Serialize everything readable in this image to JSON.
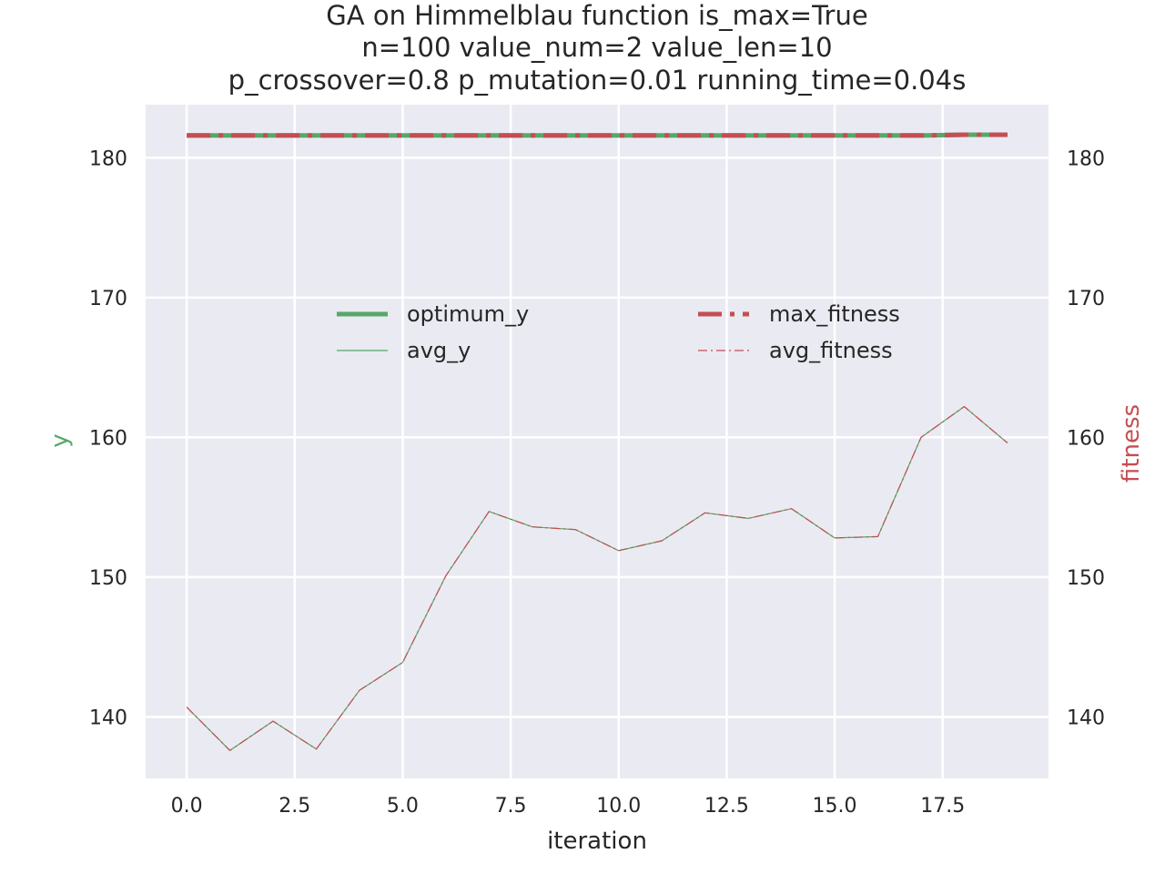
{
  "chart_data": {
    "type": "line",
    "title_lines": [
      "GA on Himmelblau function  is_max=True",
      "n=100  value_num=2  value_len=10",
      "p_crossover=0.8  p_mutation=0.01 running_time=0.04s"
    ],
    "xlabel": "iteration",
    "ylabel": "y",
    "ylabel_right": "fitness",
    "x": [
      0,
      1,
      2,
      3,
      4,
      5,
      6,
      7,
      8,
      9,
      10,
      11,
      12,
      13,
      14,
      15,
      16,
      17,
      18,
      19
    ],
    "x_ticks": [
      0,
      2.5,
      5,
      7.5,
      10,
      12.5,
      15,
      17.5
    ],
    "x_tick_labels": [
      "0.0",
      "2.5",
      "5.0",
      "7.5",
      "10.0",
      "12.5",
      "15.0",
      "17.5"
    ],
    "xlim": [
      -0.95,
      19.95
    ],
    "ylim": [
      135.6,
      183.8
    ],
    "y_ticks": [
      140,
      150,
      160,
      170,
      180
    ],
    "y_tick_labels": [
      "140",
      "150",
      "160",
      "170",
      "180"
    ],
    "y2_ticks": [
      140,
      150,
      160,
      170,
      180
    ],
    "y2_tick_labels": [
      "140",
      "150",
      "160",
      "170",
      "180"
    ],
    "grid": true,
    "legend_position": "center",
    "series": [
      {
        "name": "optimum_y",
        "axis": "left",
        "style": "solid-thick",
        "color": "#55a868",
        "values": [
          181.6,
          181.6,
          181.6,
          181.6,
          181.6,
          181.6,
          181.6,
          181.6,
          181.6,
          181.6,
          181.6,
          181.6,
          181.6,
          181.6,
          181.6,
          181.6,
          181.6,
          181.6,
          181.65,
          181.65
        ]
      },
      {
        "name": "avg_y",
        "axis": "left",
        "style": "solid-thin",
        "color": "#55a868",
        "values": [
          140.7,
          137.6,
          139.7,
          137.7,
          141.9,
          143.9,
          150.1,
          154.7,
          153.6,
          153.4,
          151.9,
          152.6,
          154.6,
          154.2,
          154.9,
          152.8,
          152.9,
          160.0,
          162.2,
          159.6
        ]
      },
      {
        "name": "max_fitness",
        "axis": "right",
        "style": "dashdot-thick",
        "color": "#c44e52",
        "values": [
          181.6,
          181.6,
          181.6,
          181.6,
          181.6,
          181.6,
          181.6,
          181.6,
          181.6,
          181.6,
          181.6,
          181.6,
          181.6,
          181.6,
          181.6,
          181.6,
          181.6,
          181.6,
          181.65,
          181.65
        ]
      },
      {
        "name": "avg_fitness",
        "axis": "right",
        "style": "dashdot-thin",
        "color": "#c44e52",
        "values": [
          140.7,
          137.6,
          139.7,
          137.7,
          141.9,
          143.9,
          150.1,
          154.7,
          153.6,
          153.4,
          151.9,
          152.6,
          154.6,
          154.2,
          154.9,
          152.8,
          152.9,
          160.0,
          162.2,
          159.6
        ]
      }
    ],
    "colors": {
      "plot_background": "#eaeaf2",
      "grid": "#ffffff",
      "left_axis_label": "#55a868",
      "right_axis_label": "#c44e52"
    }
  }
}
